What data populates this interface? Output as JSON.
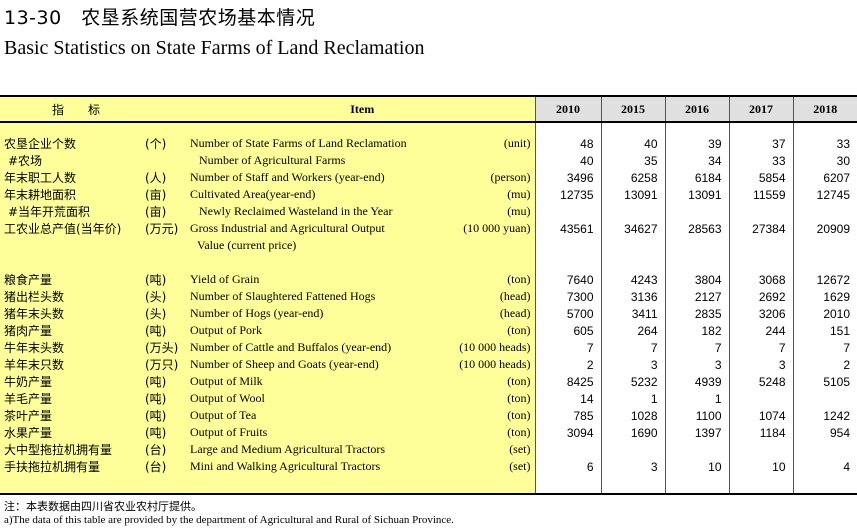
{
  "title_cn": "13-30　农垦系统国营农场基本情况",
  "title_en": "Basic Statistics on State Farms of Land Reclamation",
  "header": {
    "indicator": "指　标",
    "item": "Item",
    "years": [
      "2010",
      "2015",
      "2016",
      "2017",
      "2018"
    ]
  },
  "rows": [
    {
      "cn": "农垦企业个数",
      "unit_cn": "(个)",
      "en": "Number of State Farms of Land Reclamation",
      "unit_en": "(unit)",
      "values": [
        "48",
        "40",
        "39",
        "37",
        "33"
      ]
    },
    {
      "cn": "#农场",
      "unit_cn": "",
      "en": "Number of Agricultural Farms",
      "unit_en": "",
      "values": [
        "40",
        "35",
        "34",
        "33",
        "30"
      ],
      "sub": true
    },
    {
      "cn": "年末职工人数",
      "unit_cn": "(人)",
      "en": "Number of Staff and Workers (year-end)",
      "unit_en": "(person)",
      "values": [
        "3496",
        "6258",
        "6184",
        "5854",
        "6207"
      ]
    },
    {
      "cn": "年末耕地面积",
      "unit_cn": "(亩)",
      "en": "Cultivated Area(year-end)",
      "unit_en": "(mu)",
      "values": [
        "12735",
        "13091",
        "13091",
        "11559",
        "12745"
      ]
    },
    {
      "cn": "#当年开荒面积",
      "unit_cn": "(亩)",
      "en": "Newly Reclaimed Wasteland in the Year",
      "unit_en": "(mu)",
      "values": [
        "",
        "",
        "",
        "",
        ""
      ],
      "sub": true
    },
    {
      "cn": "工农业总产值(当年价)",
      "unit_cn": "(万元)",
      "en": "Gross Industrial and Agricultural Output",
      "unit_en": "(10 000 yuan)",
      "values": [
        "43561",
        "34627",
        "28563",
        "27384",
        "20909"
      ]
    },
    {
      "cn": "",
      "unit_cn": "",
      "en": "Value (current price)",
      "unit_en": "",
      "values": [
        "",
        "",
        "",
        "",
        ""
      ],
      "cont": true
    },
    {
      "cn": "粮食产量",
      "unit_cn": "(吨)",
      "en": "Yield of Grain",
      "unit_en": "(ton)",
      "values": [
        "7640",
        "4243",
        "3804",
        "3068",
        "12672"
      ]
    },
    {
      "cn": "猪出栏头数",
      "unit_cn": "(头)",
      "en": "Number of Slaughtered Fattened Hogs",
      "unit_en": "(head)",
      "values": [
        "7300",
        "3136",
        "2127",
        "2692",
        "1629"
      ]
    },
    {
      "cn": "猪年末头数",
      "unit_cn": "(头)",
      "en": "Number of Hogs (year-end)",
      "unit_en": "(head)",
      "values": [
        "5700",
        "3411",
        "2835",
        "3206",
        "2010"
      ]
    },
    {
      "cn": "猪肉产量",
      "unit_cn": "(吨)",
      "en": "Output of Pork",
      "unit_en": "(ton)",
      "values": [
        "605",
        "264",
        "182",
        "244",
        "151"
      ]
    },
    {
      "cn": "牛年末头数",
      "unit_cn": "(万头)",
      "en": "Number of Cattle and Buffalos (year-end)",
      "unit_en": "(10 000 heads)",
      "values": [
        "7",
        "7",
        "7",
        "7",
        "7"
      ]
    },
    {
      "cn": "羊年末只数",
      "unit_cn": "(万只)",
      "en": "Number of Sheep and Goats (year-end)",
      "unit_en": "(10 000 heads)",
      "values": [
        "2",
        "3",
        "3",
        "3",
        "2"
      ]
    },
    {
      "cn": "牛奶产量",
      "unit_cn": "(吨)",
      "en": "Output of Milk",
      "unit_en": "(ton)",
      "values": [
        "8425",
        "5232",
        "4939",
        "5248",
        "5105"
      ]
    },
    {
      "cn": "羊毛产量",
      "unit_cn": "(吨)",
      "en": "Output of Wool",
      "unit_en": "(ton)",
      "values": [
        "14",
        "1",
        "1",
        "",
        ""
      ]
    },
    {
      "cn": "茶叶产量",
      "unit_cn": "(吨)",
      "en": "Output of Tea",
      "unit_en": "(ton)",
      "values": [
        "785",
        "1028",
        "1100",
        "1074",
        "1242"
      ]
    },
    {
      "cn": "水果产量",
      "unit_cn": "(吨)",
      "en": "Output of Fruits",
      "unit_en": "(ton)",
      "values": [
        "3094",
        "1690",
        "1397",
        "1184",
        "954"
      ]
    },
    {
      "cn": "大中型拖拉机拥有量",
      "unit_cn": "(台)",
      "en": "Large and Medium Agricultural Tractors",
      "unit_en": "(set)",
      "values": [
        "",
        "",
        "",
        "",
        ""
      ]
    },
    {
      "cn": "手扶拖拉机拥有量",
      "unit_cn": "(台)",
      "en": "Mini and Walking Agricultural Tractors",
      "unit_en": "(set)",
      "values": [
        "6",
        "3",
        "10",
        "10",
        "4"
      ]
    }
  ],
  "note_cn": "注：本表数据由四川省农业农村厅提供。",
  "note_en": "a)The data of this table are provided by the department of Agricultural and Rural of Sichuan Province."
}
